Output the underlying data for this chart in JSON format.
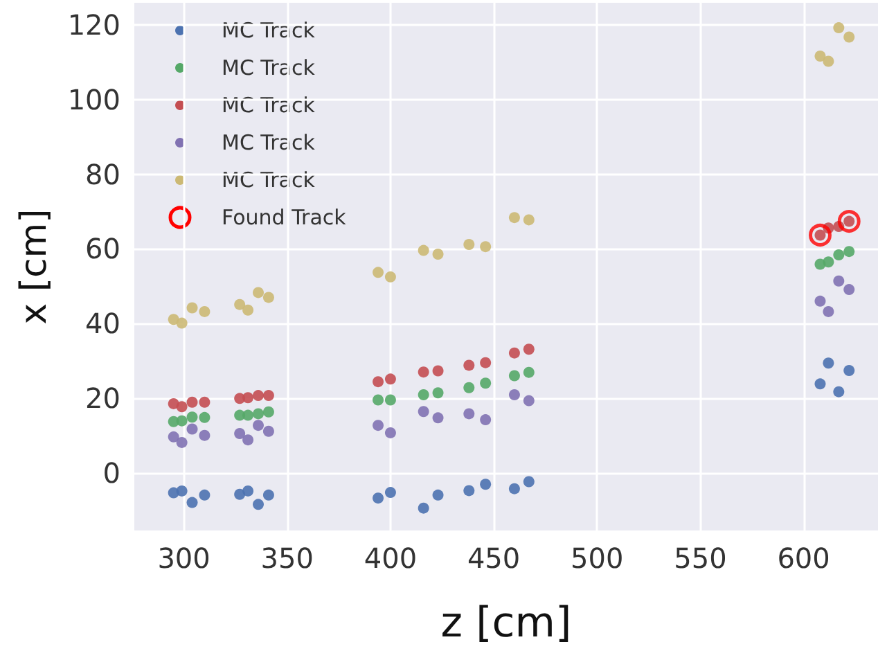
{
  "chart_data": {
    "type": "scatter",
    "xlabel": "z [cm]",
    "ylabel": "x [cm]",
    "xlim": [
      276,
      636
    ],
    "ylim": [
      -15.5,
      126
    ],
    "xticks": [
      300,
      350,
      400,
      450,
      500,
      550,
      600
    ],
    "yticks": [
      0,
      20,
      40,
      60,
      80,
      100,
      120
    ],
    "grid": true,
    "legend": "top left",
    "marker": "circle",
    "x": [
      295,
      299,
      304,
      310,
      327,
      331,
      336,
      341,
      394,
      400,
      416,
      423,
      438,
      446,
      460,
      467,
      608,
      612,
      617,
      622
    ],
    "series": [
      {
        "name": "MC Track",
        "color": "#4c72b0",
        "values": [
          -5.4,
          -4.9,
          -8.0,
          -6.0,
          -5.8,
          -4.9,
          -8.5,
          -6.0,
          -6.8,
          -5.3,
          -9.5,
          -6.0,
          -4.8,
          -3.1,
          -4.3,
          -2.4,
          23.8,
          29.4,
          21.7,
          27.4
        ]
      },
      {
        "name": "MC Track",
        "color": "#55a868",
        "values": [
          13.7,
          13.9,
          14.9,
          14.8,
          15.4,
          15.4,
          15.8,
          16.3,
          19.5,
          19.5,
          20.9,
          21.4,
          22.8,
          24.0,
          26.0,
          26.9,
          55.9,
          56.5,
          58.4,
          59.3
        ]
      },
      {
        "name": "MC Track",
        "color": "#c44e52",
        "values": [
          18.5,
          17.7,
          18.9,
          18.9,
          19.9,
          20.1,
          20.7,
          20.7,
          24.4,
          25.1,
          27.0,
          27.3,
          28.8,
          29.5,
          32.1,
          33.1,
          63.7,
          65.6,
          66.0,
          67.4
        ]
      },
      {
        "name": "MC Track",
        "color": "#8172b2",
        "values": [
          9.6,
          8.1,
          11.7,
          10.0,
          10.5,
          8.8,
          12.7,
          11.1,
          12.7,
          10.7,
          16.4,
          14.7,
          15.8,
          14.2,
          20.9,
          19.3,
          46.0,
          43.2,
          51.4,
          49.1
        ]
      },
      {
        "name": "MC Track",
        "color": "#ccb974",
        "values": [
          41.1,
          40.1,
          44.2,
          43.2,
          45.1,
          43.6,
          48.3,
          47.0,
          53.7,
          52.5,
          59.6,
          58.6,
          61.2,
          60.6,
          68.4,
          67.8,
          111.7,
          110.3,
          119.3,
          116.8
        ]
      },
      {
        "name": "Found Track",
        "color": "#ff0000",
        "marker": "circle",
        "x": [
          608,
          622
        ],
        "values": [
          63.7,
          67.4
        ]
      }
    ]
  }
}
